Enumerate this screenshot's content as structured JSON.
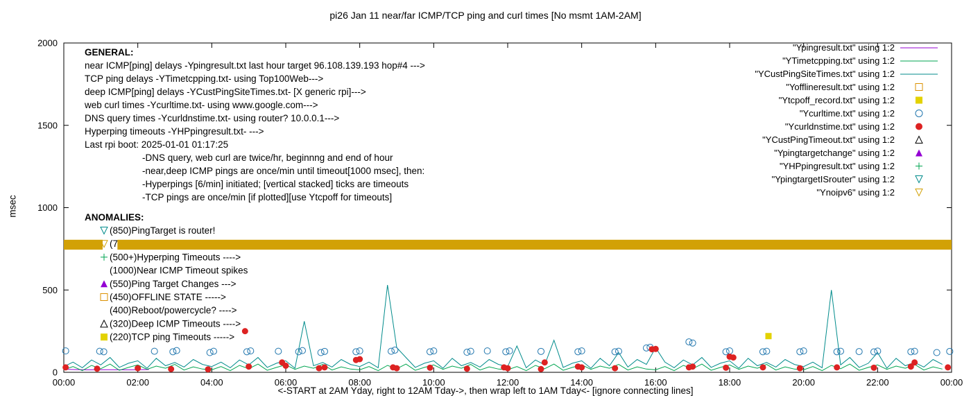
{
  "chart_data": {
    "type": "line",
    "title": "pi26 Jan 11  near/far ICMP/TCP ping and curl times [No msmt 1AM-2AM]",
    "xlabel": "<-START at 2AM Yday, right to 12AM Tday->, then wrap left to 1AM Tday<- [ignore connecting lines]",
    "ylabel": "msec",
    "xlim": [
      0,
      24
    ],
    "ylim": [
      0,
      2000
    ],
    "grid": false,
    "legend_position": "top-right",
    "x_ticks": [
      {
        "pos": 0,
        "label": "00:00"
      },
      {
        "pos": 2,
        "label": "02:00"
      },
      {
        "pos": 4,
        "label": "04:00"
      },
      {
        "pos": 6,
        "label": "06:00"
      },
      {
        "pos": 8,
        "label": "08:00"
      },
      {
        "pos": 10,
        "label": "10:00"
      },
      {
        "pos": 12,
        "label": "12:00"
      },
      {
        "pos": 14,
        "label": "14:00"
      },
      {
        "pos": 16,
        "label": "16:00"
      },
      {
        "pos": 18,
        "label": "18:00"
      },
      {
        "pos": 20,
        "label": "20:00"
      },
      {
        "pos": 22,
        "label": "22:00"
      },
      {
        "pos": 24,
        "label": "00:00"
      }
    ],
    "y_ticks": [
      {
        "pos": 0,
        "label": "0"
      },
      {
        "pos": 500,
        "label": "500"
      },
      {
        "pos": 1000,
        "label": "1000"
      },
      {
        "pos": 1500,
        "label": "1500"
      },
      {
        "pos": 2000,
        "label": "2000"
      }
    ],
    "series": [
      {
        "name": "near-icmp-ping",
        "label": "\"Ypingresult.txt\" using 1:2",
        "style": "line",
        "color": "#9400d3",
        "points": [
          [
            0.05,
            18
          ],
          [
            0.6,
            15
          ],
          [
            1.2,
            16
          ],
          [
            1.8,
            15
          ],
          [
            2.3,
            17
          ]
        ]
      },
      {
        "name": "tcp-ping",
        "label": "\"YTimetcpping.txt\" using 1:2",
        "style": "line",
        "color": "#00a550",
        "x0": 0,
        "dx": 0.25,
        "y": [
          15,
          35,
          10,
          42,
          22,
          50,
          12,
          30,
          45,
          18,
          38,
          25,
          48,
          14,
          33,
          20,
          15,
          35,
          10,
          42,
          22,
          50,
          12,
          30,
          45,
          18,
          38,
          25,
          48,
          14,
          33,
          20,
          15,
          35,
          10,
          42,
          22,
          50,
          12,
          30,
          45,
          18,
          38,
          25,
          48,
          14,
          33,
          20,
          15,
          35,
          10,
          42,
          22,
          50,
          12,
          30,
          45,
          18,
          38,
          25,
          48,
          14,
          33,
          20,
          15,
          35,
          10,
          42,
          22,
          50,
          12,
          30,
          45,
          18,
          38,
          25,
          48,
          14,
          33,
          20,
          15,
          35,
          10,
          42,
          22,
          50,
          12,
          30,
          45,
          18,
          38,
          25,
          48,
          14,
          33,
          20
        ]
      },
      {
        "name": "deep-icmp-ping",
        "label": "\"YCustPingSiteTimes.txt\" using 1:2",
        "style": "line",
        "color": "#008b8b",
        "x0": 0,
        "dx": 0.25,
        "y": [
          35,
          62,
          28,
          75,
          45,
          90,
          30,
          55,
          70,
          25,
          85,
          40,
          60,
          32,
          78,
          48,
          35,
          62,
          28,
          75,
          45,
          90,
          30,
          55,
          70,
          25,
          310,
          40,
          60,
          32,
          78,
          48,
          35,
          62,
          28,
          530,
          150,
          90,
          30,
          55,
          70,
          25,
          85,
          40,
          60,
          32,
          78,
          48,
          35,
          160,
          28,
          75,
          45,
          195,
          30,
          55,
          70,
          25,
          85,
          40,
          120,
          32,
          78,
          48,
          150,
          62,
          28,
          75,
          45,
          90,
          30,
          55,
          70,
          25,
          85,
          40,
          60,
          32,
          78,
          48,
          35,
          62,
          28,
          500,
          45,
          90,
          30,
          55,
          120,
          25,
          85,
          40,
          60,
          32,
          78,
          48
        ]
      },
      {
        "name": "offline",
        "label": "\"Yofflineresult.txt\" using 1:2",
        "style": "marker",
        "marker": "square-open",
        "color": "#db9000",
        "points": []
      },
      {
        "name": "tcpoff-record",
        "label": "\"Ytcpoff_record.txt\" using 1:2",
        "style": "marker",
        "marker": "square-filled",
        "color": "#e3d200",
        "points": [
          [
            19.05,
            220
          ]
        ]
      },
      {
        "name": "curl-time",
        "label": "\"Ycurltime.txt\" using 1:2",
        "style": "marker",
        "marker": "circle-open",
        "color": "#2176ae",
        "points": [
          [
            0.05,
            130
          ],
          [
            0.97,
            128
          ],
          [
            1.08,
            125
          ],
          [
            2.45,
            128
          ],
          [
            2.95,
            125
          ],
          [
            3.05,
            132
          ],
          [
            3.95,
            120
          ],
          [
            4.05,
            128
          ],
          [
            4.95,
            125
          ],
          [
            5.05,
            130
          ],
          [
            5.8,
            128
          ],
          [
            6.35,
            125
          ],
          [
            6.45,
            132
          ],
          [
            6.95,
            120
          ],
          [
            7.05,
            127
          ],
          [
            7.9,
            125
          ],
          [
            8.0,
            130
          ],
          [
            8.85,
            128
          ],
          [
            8.95,
            135
          ],
          [
            9.9,
            125
          ],
          [
            10.0,
            130
          ],
          [
            10.9,
            122
          ],
          [
            11.0,
            128
          ],
          [
            11.45,
            130
          ],
          [
            11.95,
            125
          ],
          [
            12.05,
            130
          ],
          [
            12.9,
            127
          ],
          [
            13.9,
            125
          ],
          [
            14.0,
            130
          ],
          [
            14.9,
            125
          ],
          [
            15.0,
            128
          ],
          [
            15.75,
            148
          ],
          [
            15.85,
            152
          ],
          [
            16.9,
            185
          ],
          [
            17.0,
            178
          ],
          [
            17.9,
            125
          ],
          [
            18.0,
            130
          ],
          [
            18.9,
            125
          ],
          [
            19.0,
            128
          ],
          [
            19.9,
            125
          ],
          [
            20.0,
            130
          ],
          [
            20.9,
            125
          ],
          [
            21.0,
            128
          ],
          [
            21.5,
            126
          ],
          [
            21.9,
            124
          ],
          [
            22.0,
            129
          ],
          [
            22.9,
            125
          ],
          [
            23.0,
            128
          ],
          [
            23.6,
            120
          ],
          [
            23.95,
            127
          ]
        ]
      },
      {
        "name": "curl-dns-time",
        "label": "\"Ycurldnstime.txt\" using 1:2",
        "style": "marker",
        "marker": "circle-filled",
        "color": "#dd2222",
        "points": [
          [
            0.05,
            30
          ],
          [
            0.9,
            22
          ],
          [
            2.0,
            25
          ],
          [
            2.9,
            20
          ],
          [
            3.9,
            18
          ],
          [
            4.9,
            250
          ],
          [
            5.0,
            35
          ],
          [
            5.9,
            60
          ],
          [
            6.0,
            40
          ],
          [
            6.9,
            25
          ],
          [
            7.05,
            30
          ],
          [
            7.9,
            75
          ],
          [
            8.0,
            80
          ],
          [
            8.9,
            30
          ],
          [
            9.0,
            25
          ],
          [
            9.9,
            28
          ],
          [
            10.9,
            22
          ],
          [
            11.9,
            30
          ],
          [
            12.0,
            25
          ],
          [
            12.9,
            20
          ],
          [
            13.0,
            60
          ],
          [
            13.9,
            35
          ],
          [
            14.0,
            30
          ],
          [
            14.9,
            25
          ],
          [
            15.9,
            140
          ],
          [
            16.0,
            142
          ],
          [
            16.9,
            30
          ],
          [
            17.0,
            35
          ],
          [
            17.9,
            28
          ],
          [
            18.0,
            95
          ],
          [
            18.1,
            90
          ],
          [
            18.9,
            30
          ],
          [
            19.9,
            25
          ],
          [
            20.9,
            30
          ],
          [
            21.9,
            28
          ],
          [
            22.9,
            35
          ],
          [
            23.0,
            60
          ],
          [
            23.9,
            30
          ]
        ]
      },
      {
        "name": "deep-icmp-timeout",
        "label": "\"YCustPingTimeout.txt\" using 1:2",
        "style": "marker",
        "marker": "triangle-up-open",
        "color": "#000000",
        "points": []
      },
      {
        "name": "ping-target-change",
        "label": "\"Ypingtargetchange\" using 1:2",
        "style": "marker",
        "marker": "triangle-up-filled",
        "color": "#9400d3",
        "points": []
      },
      {
        "name": "hyperping",
        "label": "\"YHPpingresult.txt\" using 1:2",
        "style": "marker",
        "marker": "plus",
        "color": "#00a550",
        "points": []
      },
      {
        "name": "pingtarget-is-router",
        "label": "\"YpingtargetISrouter\" using 1:2",
        "style": "marker",
        "marker": "triangle-down-open",
        "color": "#008b8b",
        "points": []
      },
      {
        "name": "noipv6",
        "label": "\"Ynoipv6\" using 1:2",
        "style": "marker",
        "marker": "triangle-down-open",
        "color": "#d2a106",
        "points": []
      }
    ],
    "band": {
      "series": "noipv6",
      "y0": 745,
      "y1": 805,
      "gap": [
        1.05,
        1.45
      ],
      "color": "#d2a106"
    },
    "annotations": {
      "general": {
        "header": "GENERAL:",
        "lines": [
          {
            "text": "near ICMP[ping] delays -Ypingresult.txt last hour target 96.108.139.193 hop#4 --->",
            "indent": 0
          },
          {
            "text": "TCP ping delays -YTimetcpping.txt- using Top100Web--->",
            "indent": 0
          },
          {
            "text": "deep ICMP[ping] delays -YCustPingSiteTimes.txt- [X generic rpi]--->",
            "indent": 0
          },
          {
            "text": "web curl times -Ycurltime.txt- using www.google.com--->",
            "indent": 0
          },
          {
            "text": "DNS query times -Ycurldnstime.txt- using router? 10.0.0.1--->",
            "indent": 0
          },
          {
            "text": "Hyperping timeouts -YHPpingresult.txt- --->",
            "indent": 0
          },
          {
            "text": "Last rpi boot: 2025-01-01 01:17:25",
            "indent": 0
          },
          {
            "text": "-DNS query, web curl are twice/hr, beginnng and end of hour",
            "indent": 1
          },
          {
            "text": "-near,deep ICMP pings are once/min until timeout[1000 msec], then:",
            "indent": 1
          },
          {
            "text": "-Hyperpings [6/min] initiated; [vertical stacked] ticks are timeouts",
            "indent": 1
          },
          {
            "text": "-TCP pings are once/min [if plotted][use Ytcpoff for timeouts]",
            "indent": 1
          }
        ]
      },
      "anomalies": {
        "header": "ANOMALIES:",
        "items": [
          {
            "marker": "triangle-down-open",
            "color": "#008b8b",
            "text": "(850)PingTarget is router!"
          },
          {
            "marker": "triangle-down-open",
            "color": "#d2a106",
            "text": "(775)No ipv6 ---->"
          },
          {
            "marker": "plus",
            "color": "#00a550",
            "text": "(500+)Hyperping Timeouts ---->"
          },
          {
            "marker": "none",
            "color": "",
            "text": "(1000)Near ICMP Timeout spikes"
          },
          {
            "marker": "triangle-up-filled",
            "color": "#9400d3",
            "text": "(550)Ping Target Changes --->"
          },
          {
            "marker": "square-open",
            "color": "#db9000",
            "text": "(450)OFFLINE STATE ----->"
          },
          {
            "marker": "none",
            "color": "",
            "text": "(400)Reboot/powercycle? ---->"
          },
          {
            "marker": "triangle-up-open",
            "color": "#000000",
            "text": "(320)Deep ICMP Timeouts ---->"
          },
          {
            "marker": "square-filled",
            "color": "#e3d200",
            "text": "(220)TCP ping Timeouts ----->"
          }
        ]
      }
    }
  }
}
